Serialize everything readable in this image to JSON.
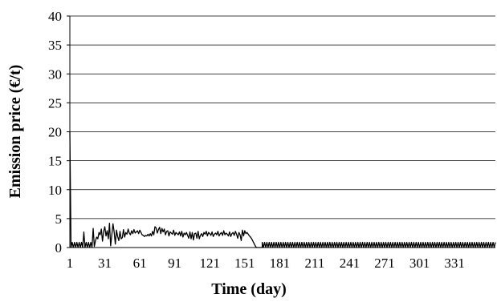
{
  "chart_data": {
    "type": "line",
    "title": "",
    "xlabel": "Time (day)",
    "ylabel": "Emission price (€/t)",
    "xlim": [
      1,
      366
    ],
    "ylim": [
      0,
      40
    ],
    "yticks": [
      0,
      5,
      10,
      15,
      20,
      25,
      30,
      35,
      40
    ],
    "xticks": [
      1,
      31,
      61,
      91,
      121,
      151,
      181,
      211,
      241,
      271,
      301,
      331
    ],
    "grid": "horizontal",
    "legend": "none",
    "line_color": "#000000",
    "series": [
      {
        "x": [
          1,
          2,
          3,
          4,
          5,
          6,
          7,
          8,
          9,
          10,
          11,
          12,
          13,
          14,
          15,
          16,
          17,
          18,
          19,
          20,
          21,
          22,
          23,
          24,
          25,
          26,
          27,
          28,
          29,
          30,
          31,
          32,
          33,
          34,
          35,
          36,
          37,
          38,
          39,
          40,
          41,
          42,
          43,
          44,
          45,
          46,
          47,
          48,
          49,
          50,
          51,
          52,
          53,
          54,
          55,
          56,
          57,
          58,
          59,
          60,
          61,
          62,
          63,
          64,
          65,
          66,
          67,
          68,
          69,
          70,
          71,
          72,
          73,
          74,
          75,
          76,
          77,
          78,
          79,
          80,
          81,
          82,
          83,
          84,
          85,
          86,
          87,
          88,
          89,
          90,
          91,
          92,
          93,
          94,
          95,
          96,
          97,
          98,
          99,
          100,
          101,
          102,
          103,
          104,
          105,
          106,
          107,
          108,
          109,
          110,
          111,
          112,
          113,
          114,
          115,
          116,
          117,
          118,
          119,
          120,
          121,
          122,
          123,
          124,
          125,
          126,
          127,
          128,
          129,
          130,
          131,
          132,
          133,
          134,
          135,
          136,
          137,
          138,
          139,
          140,
          141,
          142,
          143,
          144,
          145,
          146,
          147,
          148,
          149,
          150,
          151,
          152,
          153,
          154,
          155,
          156,
          157,
          158,
          159,
          160,
          161,
          162,
          163,
          164,
          165,
          166
        ],
        "values": [
          20.0,
          0.0,
          0.9,
          0.0,
          0.9,
          0.0,
          0.9,
          0.0,
          0.9,
          0.0,
          0.9,
          0.0,
          2.7,
          0.0,
          0.9,
          0.0,
          0.9,
          0.0,
          0.9,
          0.0,
          3.3,
          0.2,
          1.2,
          1.8,
          1.5,
          2.6,
          2.2,
          3.2,
          1.1,
          2.8,
          3.6,
          2.0,
          2.9,
          1.5,
          4.2,
          0.3,
          2.2,
          4.1,
          2.7,
          0.6,
          3.0,
          1.9,
          1.2,
          2.8,
          1.5,
          1.7,
          3.1,
          1.8,
          2.6,
          2.3,
          3.2,
          2.5,
          2.2,
          2.9,
          2.4,
          3.1,
          2.5,
          2.7,
          2.9,
          2.4,
          3.0,
          2.6,
          2.2,
          2.1,
          1.9,
          2.1,
          2.0,
          2.3,
          2.0,
          2.4,
          2.0,
          2.8,
          2.2,
          3.6,
          3.4,
          2.5,
          3.1,
          3.5,
          2.4,
          3.3,
          2.7,
          3.2,
          2.2,
          2.8,
          2.9,
          2.0,
          2.7,
          2.5,
          2.3,
          3.0,
          2.1,
          2.6,
          2.4,
          2.2,
          2.7,
          2.0,
          2.8,
          1.8,
          2.5,
          2.2,
          2.6,
          2.1,
          1.6,
          2.7,
          1.5,
          2.6,
          1.3,
          2.4,
          2.5,
          1.6,
          2.8,
          1.5,
          2.1,
          2.4,
          1.9,
          2.6,
          2.3,
          2.8,
          2.0,
          2.6,
          2.4,
          2.1,
          2.7,
          1.9,
          2.3,
          2.5,
          2.2,
          2.8,
          2.0,
          2.4,
          2.6,
          2.1,
          2.9,
          2.2,
          2.5,
          2.3,
          2.0,
          2.7,
          1.9,
          2.4,
          2.6,
          2.1,
          2.8,
          2.3,
          1.6,
          2.6,
          2.2,
          1.2,
          3.0,
          2.0,
          2.9,
          2.4,
          2.6,
          2.3,
          2.0,
          1.8,
          1.5,
          1.1,
          0.7,
          0.3,
          0.0,
          0.0,
          0.0,
          0.0,
          0.0,
          0.0
        ]
      }
    ],
    "tail_oscillation": {
      "x_start": 166,
      "x_end": 366,
      "low": 0.0,
      "high": 0.9
    }
  }
}
